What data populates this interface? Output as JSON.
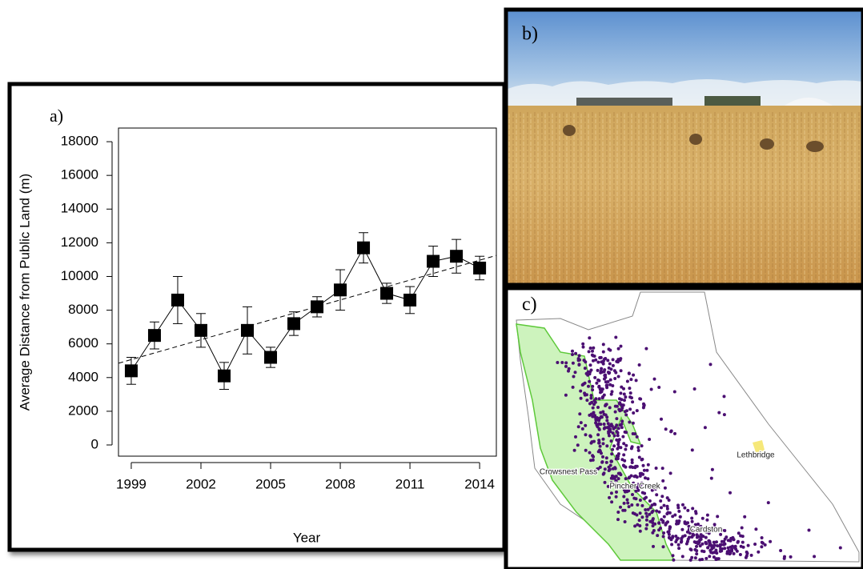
{
  "chart_data": {
    "type": "line",
    "panel_label": "a)",
    "x_label": "Year",
    "y_label": "Average Distance from Public Land (m)",
    "x": [
      1999,
      2000,
      2001,
      2002,
      2003,
      2004,
      2005,
      2006,
      2007,
      2008,
      2009,
      2010,
      2011,
      2012,
      2013,
      2014
    ],
    "values": [
      4400,
      6500,
      8600,
      6800,
      4100,
      6800,
      5200,
      7200,
      8200,
      9200,
      11700,
      9000,
      8600,
      10900,
      11200,
      10500
    ],
    "errors": [
      800,
      800,
      1400,
      1000,
      800,
      1400,
      600,
      700,
      600,
      1200,
      900,
      600,
      800,
      900,
      1000,
      700
    ],
    "trend": {
      "x": [
        1998.45,
        2014.72
      ],
      "values": [
        4850,
        11250
      ]
    },
    "color": "#000000",
    "xlim": [
      1998.45,
      2014.72
    ],
    "xticks": [
      1999,
      2002,
      2005,
      2008,
      2011,
      2014
    ],
    "ylim": [
      -665,
      18810
    ],
    "yticks": [
      0,
      2000,
      4000,
      6000,
      8000,
      10000,
      12000,
      14000,
      16000,
      18000
    ]
  },
  "photo": {
    "label": "b)"
  },
  "map": {
    "label": "c)",
    "places": [
      "Lethbridge",
      "Crowsnest Pass",
      "Pincher Creek",
      "Cardston"
    ]
  }
}
